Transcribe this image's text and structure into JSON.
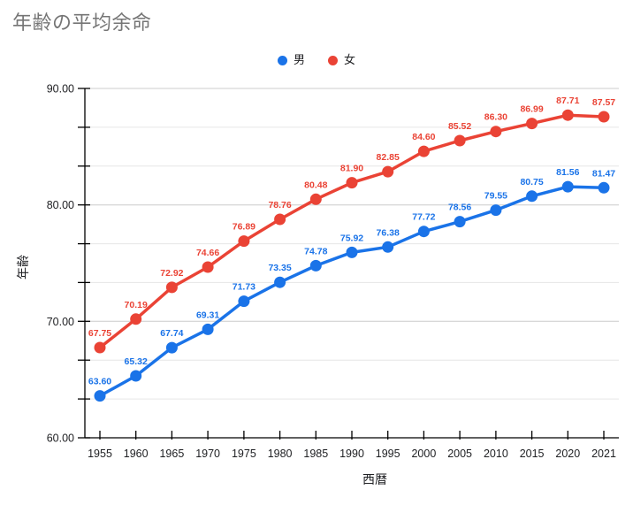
{
  "title": "年齢の平均余命",
  "colors": {
    "male": "#1a73e8",
    "female": "#ea4335",
    "grid_major": "#cccccc",
    "grid_minor": "#e6e6e6",
    "axis": "#000000",
    "title": "#757575",
    "tick_label": "#202124",
    "axis_title": "#202124",
    "background": "#ffffff"
  },
  "chart_data": {
    "type": "line",
    "title": "年齢の平均余命",
    "xlabel": "西暦",
    "ylabel": "年齢",
    "categories": [
      "1955",
      "1960",
      "1965",
      "1970",
      "1975",
      "1980",
      "1985",
      "1990",
      "1995",
      "2000",
      "2005",
      "2010",
      "2015",
      "2020",
      "2021"
    ],
    "series": [
      {
        "key": "male",
        "name": "男",
        "color": "#1a73e8",
        "values": [
          63.6,
          65.32,
          67.74,
          69.31,
          71.73,
          73.35,
          74.78,
          75.92,
          76.38,
          77.72,
          78.56,
          79.55,
          80.75,
          81.56,
          81.47
        ]
      },
      {
        "key": "female",
        "name": "女",
        "color": "#ea4335",
        "values": [
          67.75,
          70.19,
          72.92,
          74.66,
          76.89,
          78.76,
          80.48,
          81.9,
          82.85,
          84.6,
          85.52,
          86.3,
          86.99,
          87.71,
          87.57
        ]
      }
    ],
    "ylim": [
      60,
      90
    ],
    "y_major_ticks": [
      60,
      70,
      80,
      90
    ],
    "y_divisions": 9,
    "y_tick_format_decimals": 2,
    "data_label_decimals": 2,
    "grid": true,
    "legend_position": "top"
  }
}
